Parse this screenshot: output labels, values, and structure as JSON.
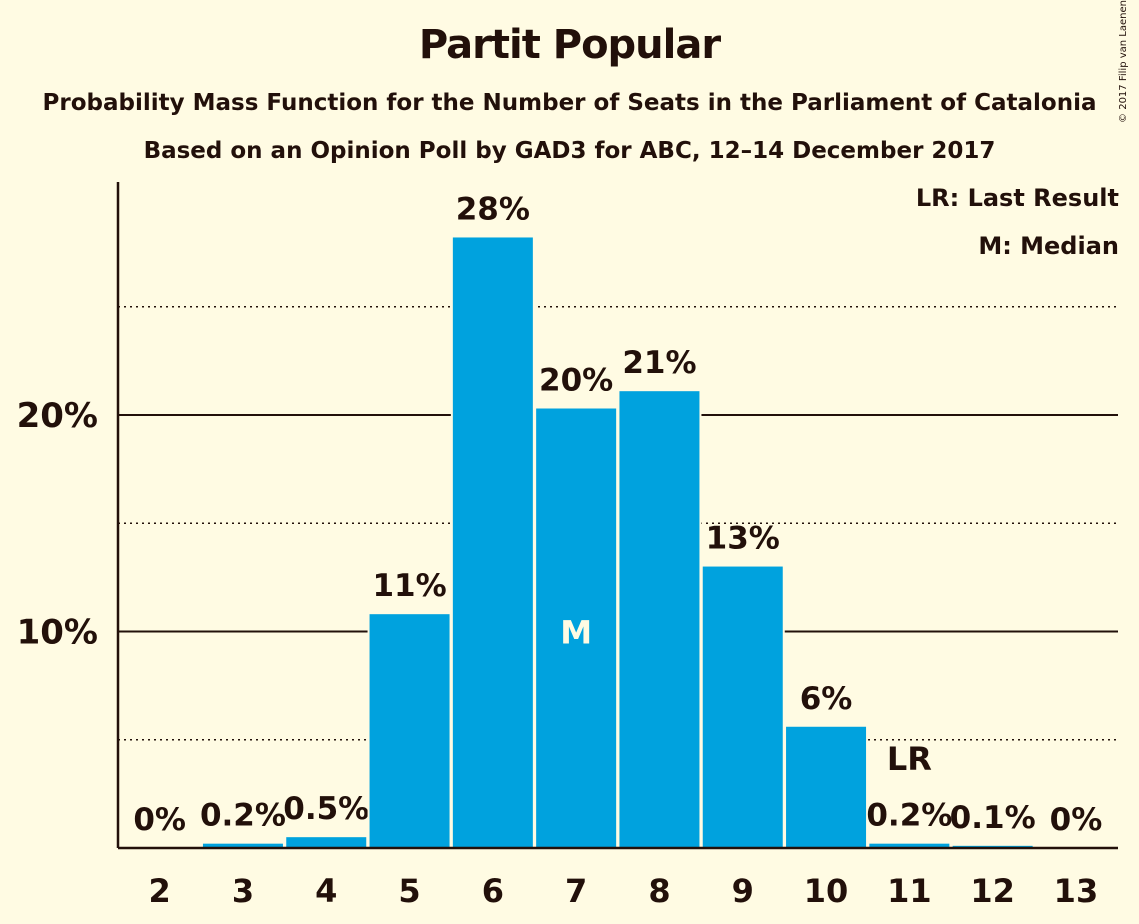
{
  "title": "Partit Popular",
  "subtitle_1": "Probability Mass Function for the Number of Seats in the Parliament of Catalonia",
  "subtitle_2": "Based on an Opinion Poll by GAD3 for ABC, 12–14 December 2017",
  "copyright": "© 2017 Filip van Laenen",
  "legend": {
    "last_result": "LR: Last Result",
    "median": "M: Median"
  },
  "colors": {
    "bar": "#00a2de",
    "background": "#fffbe3",
    "text": "#22100a"
  },
  "chart_data": {
    "type": "bar",
    "categories": [
      "2",
      "3",
      "4",
      "5",
      "6",
      "7",
      "8",
      "9",
      "10",
      "11",
      "12",
      "13"
    ],
    "values": [
      0,
      0.2,
      0.5,
      10.8,
      28.2,
      20.3,
      21.1,
      13.0,
      5.6,
      0.2,
      0.1,
      0
    ],
    "data_labels": [
      "0%",
      "0.2%",
      "0.5%",
      "11%",
      "28%",
      "20%",
      "21%",
      "13%",
      "6%",
      "0.2%",
      "0.1%",
      "0%"
    ],
    "y_tick_labels": [
      {
        "value": 10,
        "label": "10%"
      },
      {
        "value": 20,
        "label": "20%"
      }
    ],
    "minor_gridlines": [
      5,
      15,
      25
    ],
    "ylim": [
      0,
      30.8
    ],
    "median_category": "7",
    "median_label": "M",
    "last_result_category": "11",
    "last_result_label": "LR"
  }
}
